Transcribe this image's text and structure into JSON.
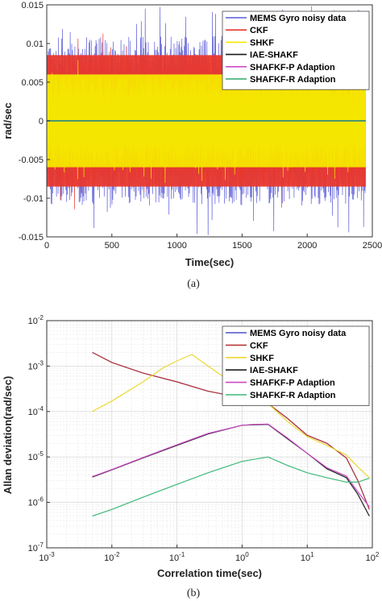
{
  "chart_data": [
    {
      "type": "line",
      "caption": "(a)",
      "xlabel": "Time(sec)",
      "ylabel": "rad/sec",
      "xlim": [
        0,
        2500
      ],
      "ylim": [
        -0.015,
        0.015
      ],
      "x_ticks": [
        "0",
        "500",
        "1000",
        "1500",
        "2000",
        "2500"
      ],
      "y_ticks": [
        "0.015",
        "0.01",
        "0.005",
        "0",
        "-0.005",
        "-0.01",
        "-0.015"
      ],
      "legend_position": "top-right",
      "grid": false,
      "series": [
        {
          "name": "MEMS Gyro noisy data",
          "color": "#5a5ad8",
          "x": [
            0,
            2450
          ],
          "band": [
            -0.011,
            0.011
          ]
        },
        {
          "name": "CKF",
          "color": "#e8382e",
          "x": [
            0,
            2450
          ],
          "band": [
            -0.0085,
            0.0085
          ]
        },
        {
          "name": "SHKF",
          "color": "#f5e600",
          "x": [
            0,
            2450
          ],
          "band": [
            -0.006,
            0.006
          ]
        },
        {
          "name": "IAE-SHAKF",
          "color": "#1a1a1a",
          "x": [
            0,
            2450
          ],
          "y": [
            0,
            0
          ]
        },
        {
          "name": "SHAFKF-P Adaption",
          "color": "#d04cc8",
          "x": [
            0,
            2450
          ],
          "y": [
            0,
            0
          ]
        },
        {
          "name": "SHAFKF-R Adaption",
          "color": "#2ea86a",
          "x": [
            0,
            2450
          ],
          "y": [
            0,
            0
          ]
        }
      ]
    },
    {
      "type": "line",
      "caption": "(b)",
      "xlabel": "Correlation time(sec)",
      "ylabel": "Allan deviation(rad/sec)",
      "xscale": "log",
      "yscale": "log",
      "xlim": [
        0.001,
        100
      ],
      "ylim": [
        1e-07,
        0.01
      ],
      "x_ticks": [
        "10^-3",
        "10^-2",
        "10^-1",
        "10^0",
        "10^1",
        "10^2"
      ],
      "y_ticks": [
        "10^-2",
        "10^-3",
        "10^-4",
        "10^-5",
        "10^-6",
        "10^-7"
      ],
      "legend_position": "top-right",
      "grid": true,
      "series": [
        {
          "name": "MEMS Gyro noisy data",
          "color": "#5050c8",
          "x": [
            0.005,
            0.01,
            0.03,
            0.1,
            0.3,
            1.0,
            2.5,
            5,
            10,
            20,
            40,
            60,
            90
          ],
          "y": [
            0.002,
            0.0012,
            0.0007,
            0.00045,
            0.00028,
            0.0002,
            0.00015,
            7e-05,
            3e-05,
            2e-05,
            9.5e-06,
            3e-06,
            7e-07
          ]
        },
        {
          "name": "CKF",
          "color": "#b83838",
          "x": [
            0.005,
            0.01,
            0.03,
            0.1,
            0.3,
            1.0,
            2.5,
            5,
            10,
            20,
            40,
            60,
            90
          ],
          "y": [
            0.002,
            0.0012,
            0.0007,
            0.00045,
            0.00028,
            0.0002,
            0.00015,
            7e-05,
            3e-05,
            2e-05,
            9.5e-06,
            3e-06,
            7e-07
          ]
        },
        {
          "name": "SHKF",
          "color": "#ecd830",
          "x": [
            0.005,
            0.01,
            0.03,
            0.06,
            0.1,
            0.17,
            0.3,
            0.6,
            1.0,
            2.5,
            5,
            10,
            20,
            40,
            60,
            90
          ],
          "y": [
            0.0001,
            0.00017,
            0.00045,
            0.0009,
            0.0013,
            0.0018,
            0.001,
            0.0005,
            0.0003,
            0.00015,
            6e-05,
            2.8e-05,
            1.8e-05,
            1.1e-05,
            6e-06,
            3.5e-06
          ]
        },
        {
          "name": "IAE-SHAKF",
          "color": "#202020",
          "x": [
            0.005,
            0.01,
            0.03,
            0.1,
            0.3,
            1.0,
            1.5,
            2.5,
            5,
            10,
            20,
            40,
            60,
            90
          ],
          "y": [
            3.6e-06,
            5.2e-06,
            9.5e-06,
            1.8e-05,
            3.2e-05,
            5e-05,
            5.1e-05,
            5.2e-05,
            2.5e-05,
            1.2e-05,
            5.5e-06,
            3.5e-06,
            1.5e-06,
            5e-07
          ]
        },
        {
          "name": "SHAFKF-P Adaption",
          "color": "#cc48c4",
          "x": [
            0.005,
            0.01,
            0.03,
            0.1,
            0.3,
            1.0,
            1.5,
            2.5,
            5,
            10,
            20,
            40,
            60,
            90
          ],
          "y": [
            3.7e-06,
            5.3e-06,
            9.7e-06,
            1.85e-05,
            3.3e-05,
            5e-05,
            5.2e-05,
            5.3e-05,
            2.6e-05,
            1.2e-05,
            5.8e-06,
            3.8e-06,
            1.7e-06,
            8e-07
          ]
        },
        {
          "name": "SHAFKF-R Adaption",
          "color": "#3cb878",
          "x": [
            0.005,
            0.01,
            0.03,
            0.1,
            0.3,
            1.0,
            2.5,
            5,
            10,
            20,
            40,
            60,
            90
          ],
          "y": [
            5e-07,
            7e-07,
            1.3e-06,
            2.5e-06,
            4.5e-06,
            8e-06,
            1e-05,
            6.5e-06,
            4.5e-06,
            3.5e-06,
            2.8e-06,
            2.8e-06,
            3.4e-06
          ]
        }
      ]
    }
  ]
}
